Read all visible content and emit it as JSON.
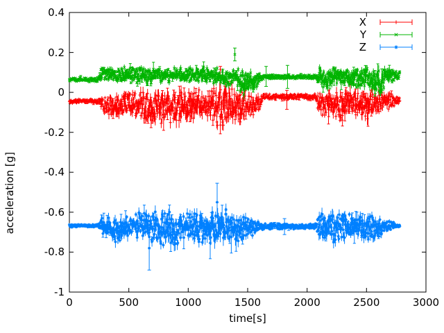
{
  "chart_data": {
    "type": "scatter",
    "plot_style": "errorbars",
    "title": "",
    "xlabel": "time[s]",
    "ylabel": "acceleration [g]",
    "xlim": [
      0,
      3000
    ],
    "ylim": [
      -1,
      0.4
    ],
    "x_tick_labels": [
      "0",
      "500",
      "1000",
      "1500",
      "2000",
      "2500",
      "3000"
    ],
    "y_tick_labels": [
      "0.4",
      "0.2",
      "0",
      "-0.2",
      "-0.4",
      "-0.6",
      "-0.8",
      "-1"
    ],
    "grid": false,
    "legend_position": "top-right-inside",
    "background_color": "#ffffff",
    "axis_color": "#000000",
    "series": [
      {
        "name": "X",
        "color": "#ff0000",
        "marker": "plus",
        "seed": 101,
        "t_start": 0,
        "t_end": 2780,
        "step": 2.5,
        "baseline": -0.05,
        "envelope": [
          [
            0,
            -0.058,
            -0.03
          ],
          [
            245,
            -0.058,
            -0.03
          ],
          [
            265,
            -0.1,
            -0.01
          ],
          [
            400,
            -0.145,
            0.0
          ],
          [
            520,
            -0.12,
            0.01
          ],
          [
            700,
            -0.17,
            0.01
          ],
          [
            850,
            -0.155,
            0.02
          ],
          [
            1000,
            -0.175,
            0.02
          ],
          [
            1150,
            -0.13,
            0.02
          ],
          [
            1250,
            -0.19,
            0.03
          ],
          [
            1400,
            -0.165,
            0.02
          ],
          [
            1500,
            -0.125,
            0.01
          ],
          [
            1600,
            -0.1,
            -0.005
          ],
          [
            1625,
            -0.04,
            -0.005
          ],
          [
            2075,
            -0.04,
            -0.005
          ],
          [
            2100,
            -0.12,
            0.01
          ],
          [
            2250,
            -0.14,
            0.02
          ],
          [
            2400,
            -0.12,
            0.015
          ],
          [
            2500,
            -0.15,
            0.02
          ],
          [
            2620,
            -0.1,
            0.01
          ],
          [
            2700,
            -0.09,
            0.0
          ],
          [
            2780,
            -0.055,
            -0.02
          ]
        ],
        "outliers": [
          {
            "t": 1270,
            "v": 0.115,
            "lo": 0.085,
            "hi": 0.13
          },
          {
            "t": 1830,
            "v": -0.03,
            "lo": -0.085,
            "hi": 0.01
          }
        ]
      },
      {
        "name": "Y",
        "color": "#00b400",
        "marker": "cross",
        "seed": 202,
        "t_start": 0,
        "t_end": 2780,
        "step": 2.5,
        "baseline": 0.08,
        "envelope": [
          [
            0,
            0.052,
            0.075
          ],
          [
            245,
            0.052,
            0.075
          ],
          [
            265,
            0.06,
            0.13
          ],
          [
            400,
            0.05,
            0.128
          ],
          [
            600,
            0.04,
            0.13
          ],
          [
            800,
            0.05,
            0.125
          ],
          [
            1000,
            0.04,
            0.13
          ],
          [
            1200,
            0.05,
            0.132
          ],
          [
            1320,
            0.02,
            0.12
          ],
          [
            1390,
            0.05,
            0.13
          ],
          [
            1460,
            -0.02,
            0.11
          ],
          [
            1550,
            0.0,
            0.105
          ],
          [
            1600,
            0.05,
            0.1
          ],
          [
            1625,
            0.065,
            0.09
          ],
          [
            2075,
            0.065,
            0.09
          ],
          [
            2100,
            0.03,
            0.13
          ],
          [
            2160,
            0.01,
            0.125
          ],
          [
            2300,
            0.04,
            0.132
          ],
          [
            2360,
            0.0,
            0.12
          ],
          [
            2500,
            0.03,
            0.13
          ],
          [
            2610,
            -0.02,
            0.12
          ],
          [
            2700,
            0.05,
            0.125
          ],
          [
            2780,
            0.06,
            0.105
          ]
        ],
        "outliers": [
          {
            "t": 1392,
            "v": 0.19,
            "lo": 0.158,
            "hi": 0.222
          },
          {
            "t": 1655,
            "v": 0.08,
            "lo": 0.03,
            "hi": 0.13
          },
          {
            "t": 1835,
            "v": 0.08,
            "lo": 0.02,
            "hi": 0.135
          }
        ]
      },
      {
        "name": "Z",
        "color": "#0080ff",
        "marker": "asterisk",
        "seed": 303,
        "t_start": 0,
        "t_end": 2780,
        "step": 2.5,
        "baseline": -0.67,
        "envelope": [
          [
            0,
            -0.676,
            -0.66
          ],
          [
            245,
            -0.676,
            -0.66
          ],
          [
            270,
            -0.72,
            -0.625
          ],
          [
            400,
            -0.76,
            -0.615
          ],
          [
            550,
            -0.74,
            -0.6
          ],
          [
            700,
            -0.755,
            -0.59
          ],
          [
            850,
            -0.775,
            -0.595
          ],
          [
            1000,
            -0.745,
            -0.605
          ],
          [
            1150,
            -0.765,
            -0.58
          ],
          [
            1260,
            -0.78,
            -0.565
          ],
          [
            1400,
            -0.765,
            -0.6
          ],
          [
            1550,
            -0.72,
            -0.63
          ],
          [
            1615,
            -0.69,
            -0.655
          ],
          [
            2075,
            -0.685,
            -0.657
          ],
          [
            2100,
            -0.745,
            -0.6
          ],
          [
            2250,
            -0.765,
            -0.585
          ],
          [
            2400,
            -0.735,
            -0.605
          ],
          [
            2500,
            -0.75,
            -0.595
          ],
          [
            2600,
            -0.725,
            -0.615
          ],
          [
            2680,
            -0.7,
            -0.638
          ],
          [
            2780,
            -0.678,
            -0.66
          ]
        ],
        "outliers": [
          {
            "t": 672,
            "v": -0.78,
            "lo": -0.89,
            "hi": -0.7
          },
          {
            "t": 1243,
            "v": -0.55,
            "lo": -0.628,
            "hi": -0.455
          },
          {
            "t": 1810,
            "v": -0.672,
            "lo": -0.712,
            "hi": -0.632
          }
        ]
      }
    ],
    "legend_entries": [
      {
        "label": "X"
      },
      {
        "label": "Y"
      },
      {
        "label": "Z"
      }
    ]
  }
}
